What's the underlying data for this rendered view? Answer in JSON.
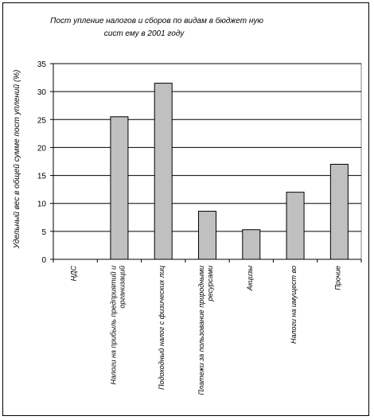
{
  "chart_data": {
    "type": "bar",
    "title_lines": [
      "Пост упление налогов и сборов по видам в бюджет ную",
      "сист ему в 2001 году"
    ],
    "ylabel": "Удельный вес в общей сумме пост уплений (%)",
    "xlabel": "",
    "ylim": [
      0,
      35
    ],
    "y_ticks": [
      0,
      5,
      10,
      15,
      20,
      25,
      30,
      35
    ],
    "grid": true,
    "legend": "none",
    "bar_color": "#c0c0c0",
    "categories": [
      {
        "lines": [
          "НДС"
        ]
      },
      {
        "lines": [
          "Налоги на прибыль предприятий и",
          "организаций"
        ]
      },
      {
        "lines": [
          "Подоходный налог с физических лиц"
        ]
      },
      {
        "lines": [
          "Платежи за пользование природными",
          "ресурсами"
        ]
      },
      {
        "lines": [
          "Акцизы"
        ]
      },
      {
        "lines": [
          "Налоги на имущест во"
        ]
      },
      {
        "lines": [
          "Прочие"
        ]
      }
    ],
    "values": [
      0,
      25.5,
      31.5,
      8.6,
      5.3,
      12.0,
      17.0
    ]
  }
}
